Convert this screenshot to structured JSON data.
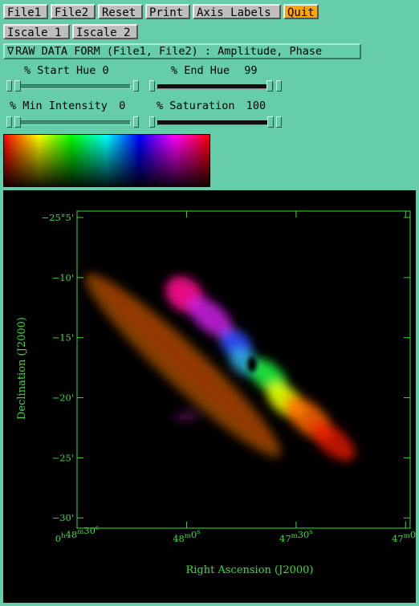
{
  "toolbar": {
    "row1": [
      "File1",
      "File2",
      "Reset",
      "Print",
      "Axis Labels",
      "Quit"
    ],
    "row2": [
      "Iscale 1",
      "Iscale 2"
    ]
  },
  "form_menu": {
    "arrow": "∇",
    "label": "RAW DATA FORM (File1, File2) : Amplitude, Phase"
  },
  "sliders": {
    "start_hue": {
      "label": "% Start Hue",
      "value": "0",
      "fraction": 0.0
    },
    "end_hue": {
      "label": "% End Hue",
      "value": "99",
      "fraction": 0.99
    },
    "min_intensity": {
      "label": "% Min Intensity",
      "value": "0",
      "fraction": 0.0
    },
    "saturation": {
      "label": "% Saturation",
      "value": "100",
      "fraction": 1.0
    }
  },
  "colors": {
    "background": "#66CDAA",
    "button": "#bebebe",
    "quit_button": "#FFA500",
    "axis": "#3cdc3c",
    "plot_bg": "#000000"
  },
  "plot": {
    "xlabel": "Right Ascension (J2000)",
    "ylabel": "Declination (J2000)",
    "ra_ticks": [
      {
        "h": "0",
        "m": "48",
        "s": "30",
        "frac": 0.0
      },
      {
        "h": "",
        "m": "48",
        "s": "0",
        "frac": 0.3288
      },
      {
        "h": "",
        "m": "47",
        "s": "30",
        "frac": 0.6576
      },
      {
        "h": "",
        "m": "47",
        "s": "0",
        "frac": 0.9863
      }
    ],
    "dec_ticks": [
      {
        "deg": "−25°",
        "min": "5'",
        "frac": 0.0
      },
      {
        "deg": "",
        "min": "−10'",
        "frac": 0.1895
      },
      {
        "deg": "",
        "min": "−15'",
        "frac": 0.3789
      },
      {
        "deg": "",
        "min": "−20'",
        "frac": 0.5684
      },
      {
        "deg": "",
        "min": "−25'",
        "frac": 0.7579
      },
      {
        "deg": "",
        "min": "−30'",
        "frac": 0.9474
      }
    ]
  }
}
